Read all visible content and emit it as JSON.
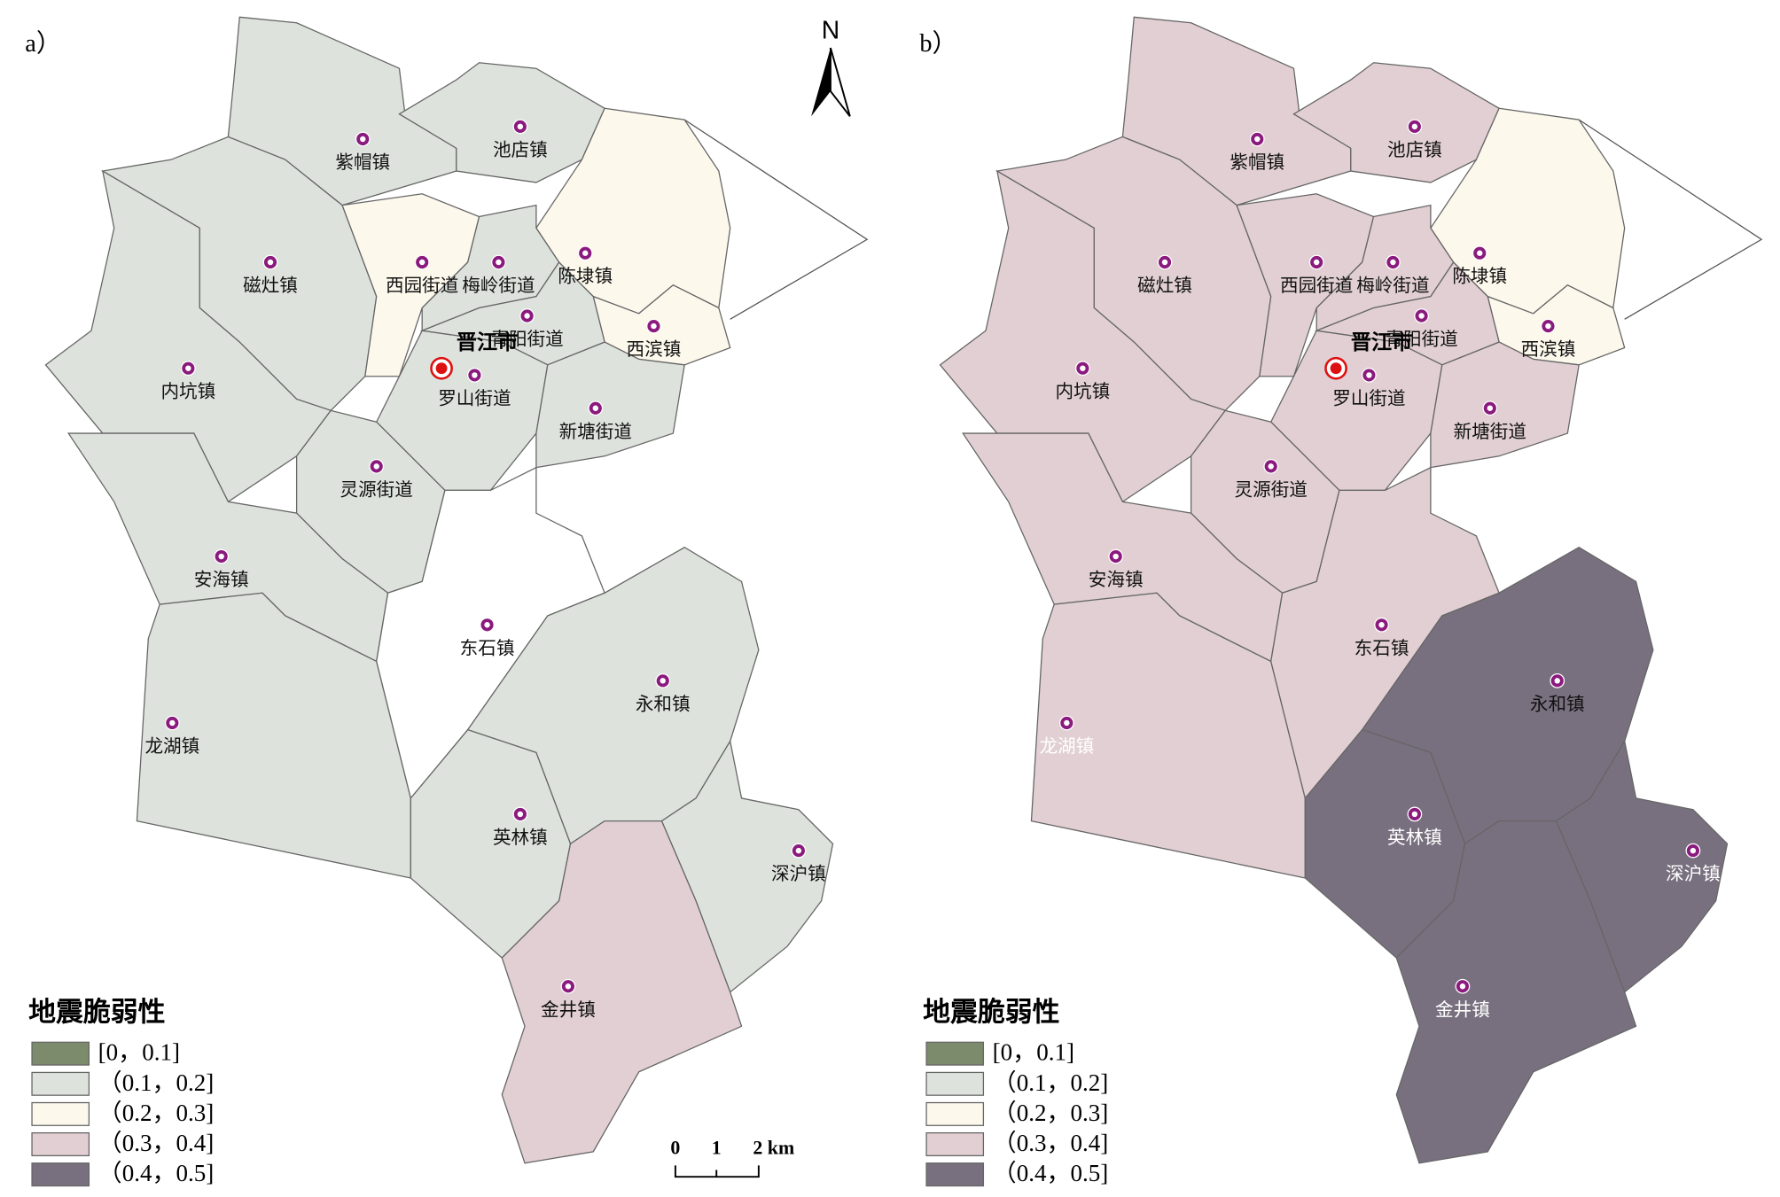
{
  "panels": [
    {
      "label": "a）",
      "towns": [
        {
          "name": "紫帽镇",
          "color": "#dde3dc"
        },
        {
          "name": "池店镇",
          "color": "#dde3dc"
        },
        {
          "name": "陈埭镇",
          "color": "#fdf8ec"
        },
        {
          "name": "西滨镇",
          "color": "#fdf8ec"
        },
        {
          "name": "磁灶镇",
          "color": "#dde3dc"
        },
        {
          "name": "西园街道",
          "color": "#fdf8ec"
        },
        {
          "name": "梅岭街道",
          "color": "#dde3dc"
        },
        {
          "name": "青阳街道",
          "color": "#dde3dc"
        },
        {
          "name": "罗山街道",
          "color": "#dde3dc"
        },
        {
          "name": "新塘街道",
          "color": "#dde3dc"
        },
        {
          "name": "内坑镇",
          "color": "#dde3dc"
        },
        {
          "name": "灵源街道",
          "color": "#dde3dc"
        },
        {
          "name": "安海镇",
          "color": "#dde3dc"
        },
        {
          "name": "东石镇",
          "color": "#dde3dc"
        },
        {
          "name": "永和镇",
          "color": "#ffffff"
        },
        {
          "name": "龙湖镇",
          "color": "#dde3dc"
        },
        {
          "name": "英林镇",
          "color": "#dde3dc"
        },
        {
          "name": "深沪镇",
          "color": "#dde3dc"
        },
        {
          "name": "金井镇",
          "color": "#e1cfd3"
        }
      ],
      "city": "晋江市"
    },
    {
      "label": "b）",
      "towns": [
        {
          "name": "紫帽镇",
          "color": "#e1cfd3"
        },
        {
          "name": "池店镇",
          "color": "#e1cfd3"
        },
        {
          "name": "陈埭镇",
          "color": "#fdf8ec"
        },
        {
          "name": "西滨镇",
          "color": "#fdf8ec"
        },
        {
          "name": "磁灶镇",
          "color": "#e1cfd3"
        },
        {
          "name": "西园街道",
          "color": "#e1cfd3"
        },
        {
          "name": "梅岭街道",
          "color": "#e1cfd3"
        },
        {
          "name": "青阳街道",
          "color": "#e1cfd3"
        },
        {
          "name": "罗山街道",
          "color": "#e1cfd3"
        },
        {
          "name": "新塘街道",
          "color": "#e1cfd3"
        },
        {
          "name": "内坑镇",
          "color": "#e1cfd3"
        },
        {
          "name": "灵源街道",
          "color": "#e1cfd3"
        },
        {
          "name": "安海镇",
          "color": "#e1cfd3"
        },
        {
          "name": "东石镇",
          "color": "#e1cfd3"
        },
        {
          "name": "永和镇",
          "color": "#e1cfd3"
        },
        {
          "name": "龙湖镇",
          "color": "#79707f"
        },
        {
          "name": "英林镇",
          "color": "#79707f"
        },
        {
          "name": "深沪镇",
          "color": "#79707f"
        },
        {
          "name": "金井镇",
          "color": "#79707f"
        }
      ],
      "city": "晋江市"
    }
  ],
  "legend": {
    "title": "地震脆弱性",
    "items": [
      {
        "label": "[0，0.1]",
        "color": "#7b8b6b"
      },
      {
        "label": "（0.1，0.2]",
        "color": "#dde3dc"
      },
      {
        "label": "（0.2，0.3]",
        "color": "#fdf8ec"
      },
      {
        "label": "（0.3，0.4]",
        "color": "#e1cfd3"
      },
      {
        "label": "（0.4，0.5]",
        "color": "#79707f"
      }
    ]
  },
  "north": "N",
  "scale_bar": [
    "0",
    "1",
    "2 km"
  ]
}
